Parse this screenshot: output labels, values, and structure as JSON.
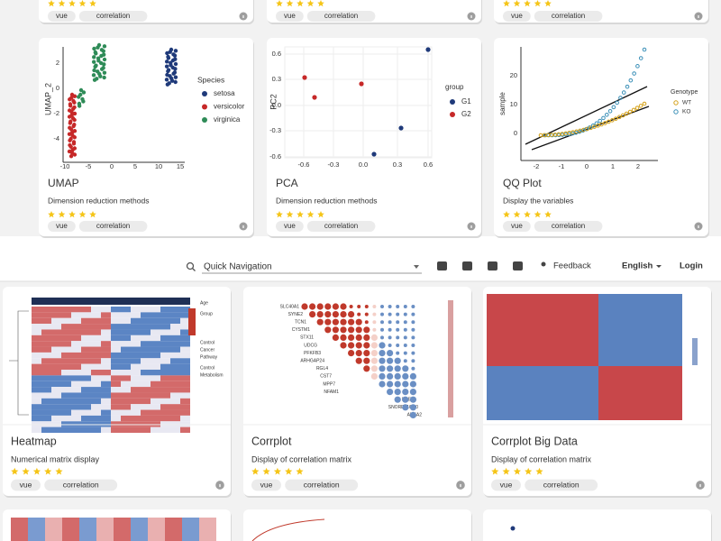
{
  "top_partial_cards": [
    {
      "tags": [
        "vue",
        "correlation"
      ]
    },
    {
      "tags": [
        "vue",
        "correlation"
      ]
    },
    {
      "tags": [
        "vue",
        "correlation"
      ]
    }
  ],
  "cards_row1": [
    {
      "title": "UMAP",
      "description": "Dimension reduction methods",
      "tags": [
        "vue",
        "correlation"
      ],
      "thumbnail": {
        "y_label": "UMAP_2",
        "yticks": [
          "2",
          "0",
          "-2",
          "-4"
        ],
        "xticks": [
          "-10",
          "-5",
          "0",
          "5",
          "10",
          "15"
        ],
        "legend_title": "Species",
        "legend_items": [
          "setosa",
          "versicolor",
          "virginica"
        ]
      }
    },
    {
      "title": "PCA",
      "description": "Dimension reduction methods",
      "tags": [
        "vue",
        "correlation"
      ],
      "thumbnail": {
        "y_label": "PC2",
        "yticks": [
          "0.6",
          "0.3",
          "0.0",
          "-0.3",
          "-0.6"
        ],
        "xticks": [
          "-0.6",
          "-0.3",
          "0.0",
          "0.3",
          "0.6"
        ],
        "legend_title": "group",
        "legend_items": [
          "G1",
          "G2"
        ]
      }
    },
    {
      "title": "QQ Plot",
      "description": "Display the variables",
      "tags": [
        "vue",
        "correlation"
      ],
      "thumbnail": {
        "y_label": "sample",
        "yticks": [
          "20",
          "10",
          "0"
        ],
        "xticks": [
          "-2",
          "-1",
          "0",
          "1",
          "2"
        ],
        "legend_title": "Genotype",
        "legend_items": [
          "WT",
          "KO"
        ]
      }
    }
  ],
  "nav": {
    "search_placeholder": "Quick Navigation",
    "feedback": "Feedback",
    "language": "English",
    "login": "Login"
  },
  "cards_row2": [
    {
      "title": "Heatmap",
      "description": "Numerical matrix display",
      "tags": [
        "vue",
        "correlation"
      ],
      "thumbnail": {
        "legend_items": [
          "Age",
          "Group",
          "Control",
          "Cancer",
          "Pathway",
          "Control",
          "Metabolism"
        ]
      }
    },
    {
      "title": "Corrplot",
      "description": "Display of correlation matrix",
      "tags": [
        "vue",
        "correlation"
      ],
      "thumbnail": {
        "genes": [
          "SLC40A1",
          "SYNE2",
          "TCN1",
          "CYSTM1",
          "STX11",
          "UDCG",
          "PFKFB3",
          "ARHGAP24",
          "RGL4",
          "CST7",
          "MPP7",
          "NFAM1",
          "EREG",
          "SNORD116-20",
          "ANXA2"
        ]
      }
    },
    {
      "title": "Corrplot Big Data",
      "description": "Display of correlation matrix",
      "tags": [
        "vue",
        "correlation"
      ],
      "thumbnail": {}
    }
  ]
}
